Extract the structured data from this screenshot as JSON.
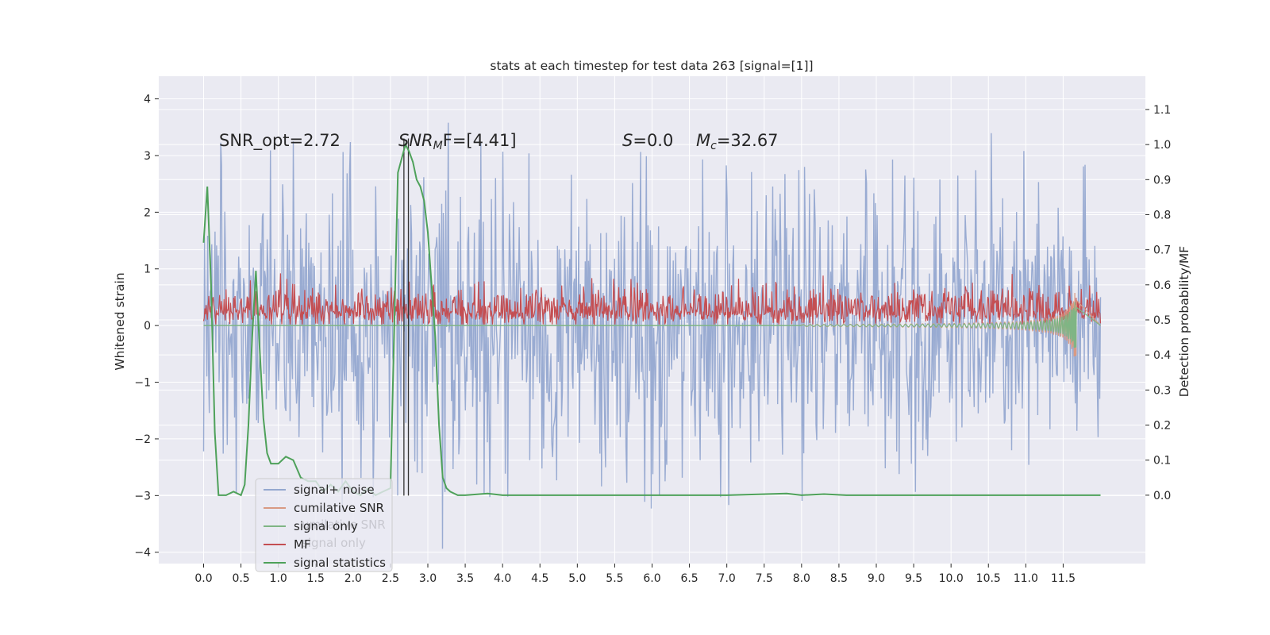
{
  "chart_data": {
    "type": "line",
    "title": "stats at each timestep for test data 263 [signal=[1]]",
    "ylabel_left": "Whitened strain",
    "ylabel_right": "Detection probability/MF",
    "xlim": [
      -0.6,
      12.6
    ],
    "ylim_left": [
      -4.2,
      4.4
    ],
    "ylim_right": [
      -0.195,
      1.195
    ],
    "xticks": [
      0.0,
      0.5,
      1.0,
      1.5,
      2.0,
      2.5,
      3.0,
      3.5,
      4.0,
      4.5,
      5.0,
      5.5,
      6.0,
      6.5,
      7.0,
      7.5,
      8.0,
      8.5,
      9.0,
      9.5,
      10.0,
      10.5,
      11.0,
      11.5
    ],
    "xtick_labels": [
      "0.0",
      "0.5",
      "1.0",
      "1.5",
      "2.0",
      "2.5",
      "3.0",
      "3.5",
      "4.0",
      "4.5",
      "5.0",
      "5.5",
      "6.0",
      "6.5",
      "7.0",
      "7.5",
      "8.0",
      "8.5",
      "9.0",
      "9.5",
      "10.0",
      "10.5",
      "11.0",
      "11.5"
    ],
    "yticks_left": [
      -4,
      -3,
      -2,
      -1,
      0,
      1,
      2,
      3,
      4
    ],
    "ytick_labels_left": [
      "−4",
      "−3",
      "−2",
      "−1",
      "0",
      "1",
      "2",
      "3",
      "4"
    ],
    "yticks_right": [
      0.0,
      0.1,
      0.2,
      0.3,
      0.4,
      0.5,
      0.6,
      0.7,
      0.8,
      0.9,
      1.0,
      1.1
    ],
    "ytick_labels_right": [
      "0.0",
      "0.1",
      "0.2",
      "0.3",
      "0.4",
      "0.5",
      "0.6",
      "0.7",
      "0.8",
      "0.9",
      "1.0",
      "1.1"
    ],
    "grid": true,
    "legend_position": "lower-left",
    "annotations": {
      "snr_opt": "SNR_opt=2.72",
      "snr_mf_base": "SNR",
      "snr_mf_sub": "M",
      "snr_mf_rest": "F=[4.41]",
      "s_var": "S",
      "s_rest": "=0.0",
      "mc_var": "M",
      "mc_sub": "c",
      "mc_rest": "=32.67"
    },
    "ghost_legend": [
      "umilative SNR",
      "signal only"
    ],
    "series": [
      {
        "name": "signal+ noise",
        "color": "#95a8d0",
        "axis": "left",
        "x_range": [
          0.0,
          12.0
        ],
        "envelope_upper": [
          1.5,
          2.5
        ],
        "envelope_lower": [
          -1.5,
          -2.4
        ],
        "peak_max": 4.1,
        "peak_min": -3.8
      },
      {
        "name": "cumilative SNR",
        "color": "#d99a83",
        "axis": "left",
        "chirp_start": 8.0,
        "chirp_end": 11.68,
        "final_amplitude": 0.9
      },
      {
        "name": "signal only",
        "color": "#7fb584",
        "axis": "left",
        "chirp_start": 8.0,
        "chirp_end": 11.68,
        "final_amplitude": 0.65
      },
      {
        "name": "MF",
        "color": "#c44e52",
        "axis": "left",
        "baseline": 0.25,
        "spread": 0.45
      },
      {
        "name": "signal statistics",
        "color": "#4ea15a",
        "axis": "right",
        "x": [
          0.0,
          0.05,
          0.1,
          0.15,
          0.2,
          0.3,
          0.4,
          0.5,
          0.55,
          0.6,
          0.65,
          0.7,
          0.75,
          0.8,
          0.85,
          0.9,
          1.0,
          1.1,
          1.2,
          1.3,
          1.4,
          1.5,
          1.6,
          1.7,
          1.8,
          1.9,
          2.0,
          2.1,
          2.2,
          2.3,
          2.4,
          2.5,
          2.6,
          2.7,
          2.75,
          2.8,
          2.85,
          2.9,
          2.95,
          3.0,
          3.1,
          3.15,
          3.2,
          3.25,
          3.3,
          3.4,
          3.5,
          3.8,
          4.0,
          5.0,
          7.0,
          7.8,
          8.0,
          8.3,
          8.6,
          10.0,
          12.0
        ],
        "y": [
          0.72,
          0.88,
          0.6,
          0.18,
          0.0,
          0.0,
          0.01,
          0.0,
          0.03,
          0.2,
          0.45,
          0.64,
          0.42,
          0.22,
          0.12,
          0.09,
          0.09,
          0.11,
          0.1,
          0.05,
          0.04,
          0.04,
          0.01,
          0.03,
          0.01,
          0.04,
          0.01,
          0.0,
          0.02,
          0.0,
          0.01,
          0.02,
          0.92,
          1.0,
          0.98,
          0.95,
          0.9,
          0.88,
          0.84,
          0.75,
          0.45,
          0.2,
          0.05,
          0.02,
          0.01,
          0.0,
          0.0,
          0.005,
          0.0,
          0.0,
          0.0,
          0.005,
          0.0,
          0.003,
          0.0,
          0.0,
          0.0
        ]
      }
    ],
    "vlines": [
      2.68,
      2.74
    ]
  }
}
